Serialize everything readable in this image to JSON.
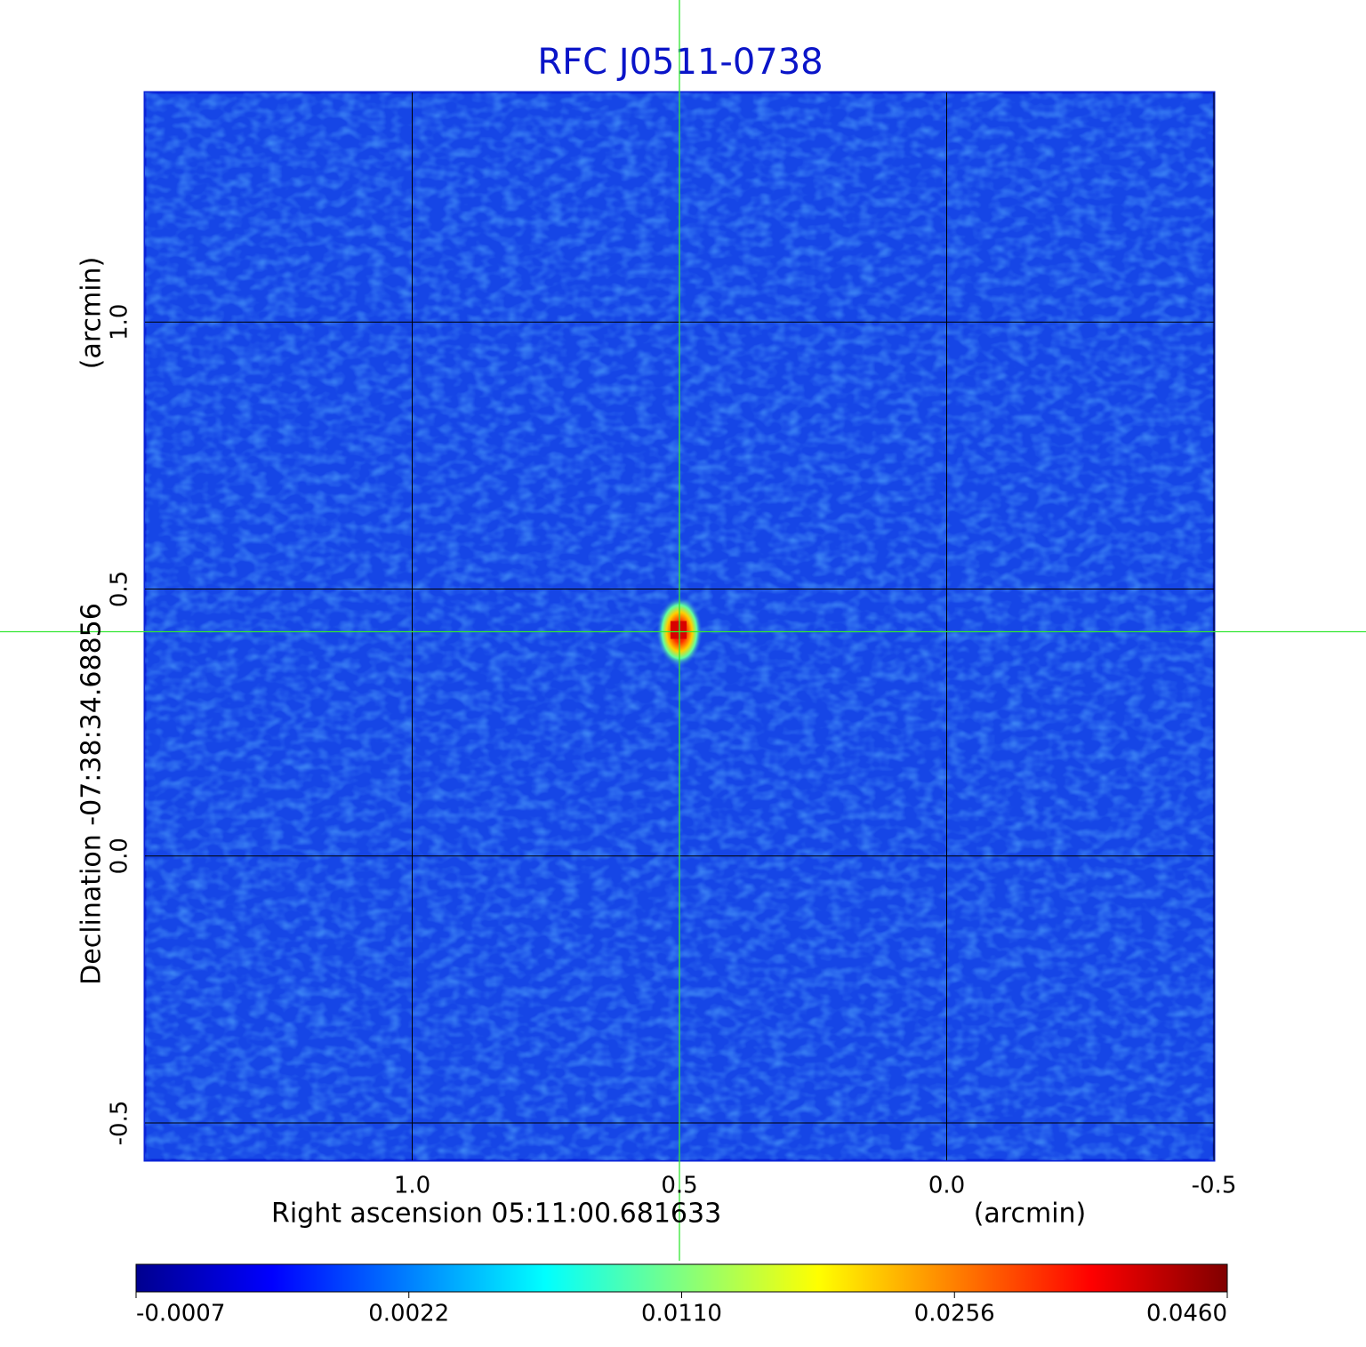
{
  "chart_data": {
    "type": "image",
    "title": "RFC J0511-0738",
    "title_color": "#0a14c8",
    "x_label": "Right ascension  05:11:00.681633",
    "x_unit": "(arcmin)",
    "y_label": "Declination  -07:38:34.68856",
    "y_unit": "(arcmin)",
    "xlim": [
      1.5,
      -0.5
    ],
    "ylim": [
      -0.57,
      1.43
    ],
    "xticks": [
      {
        "value": 1,
        "label": "1.0"
      },
      0.5,
      {
        "value": 0,
        "label": "0.0"
      },
      -0.5
    ],
    "yticks": [
      -0.5,
      {
        "value": 0,
        "label": "0.0"
      },
      0.5,
      {
        "value": 1,
        "label": "1.0"
      }
    ],
    "grid": true,
    "crosshair_color": "#33e633",
    "source": {
      "x": 0.5,
      "y": 0.42
    },
    "colormap": "jet",
    "colorbar_ticks": [
      -0.0007,
      0.0022,
      {
        "value": 0.011,
        "label": "0.0110"
      },
      0.0256,
      {
        "value": 0.046,
        "label": "0.0460"
      }
    ]
  }
}
